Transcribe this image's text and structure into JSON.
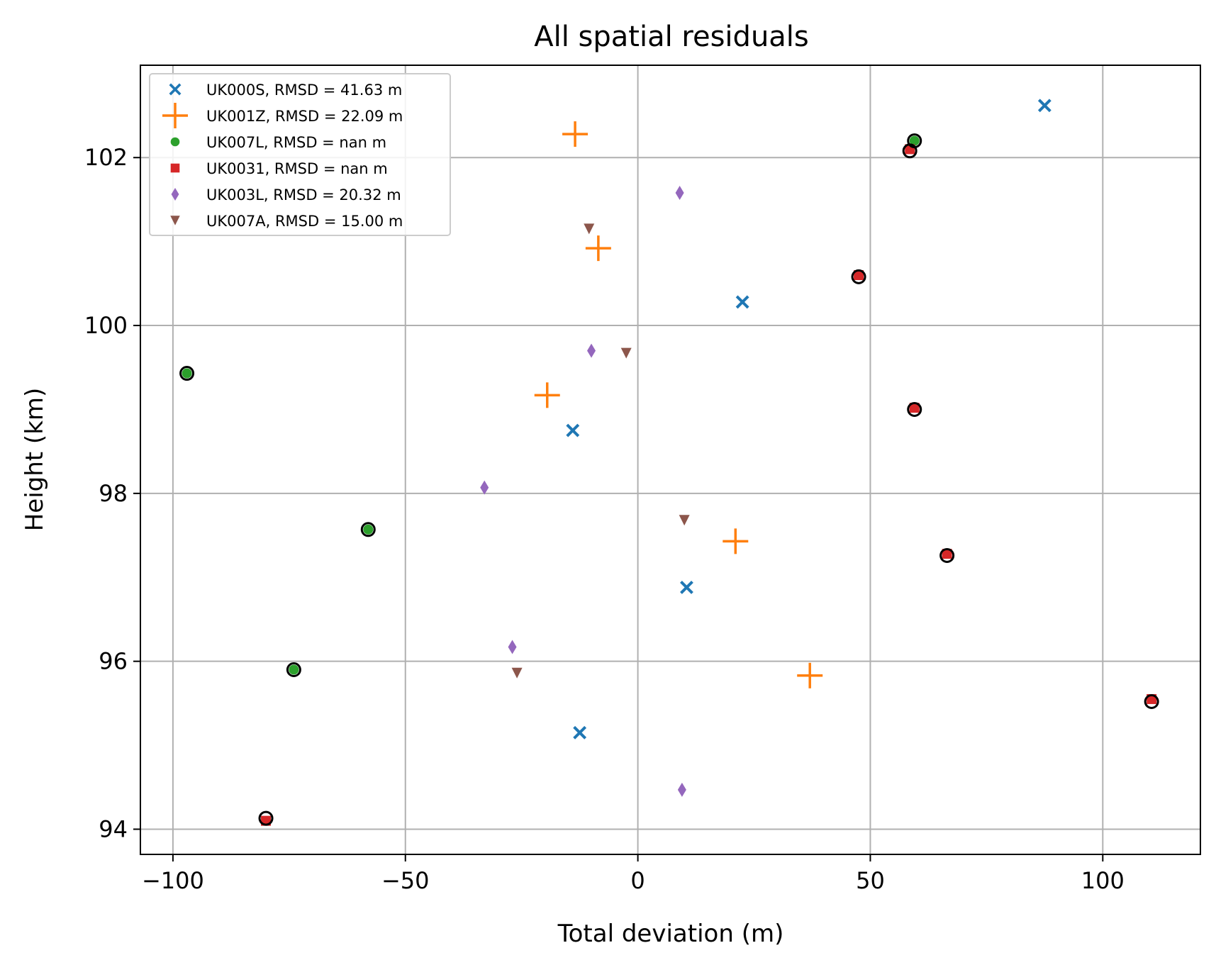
{
  "chart_data": {
    "type": "scatter",
    "title": "All spatial residuals",
    "xlabel": "Total deviation (m)",
    "ylabel": "Height (km)",
    "xlim": [
      -107,
      121
    ],
    "ylim": [
      93.7,
      103.1
    ],
    "xticks": [
      -100,
      -50,
      0,
      50,
      100
    ],
    "xtick_labels": [
      "−100",
      "−50",
      "0",
      "50",
      "100"
    ],
    "yticks": [
      94,
      96,
      98,
      100,
      102
    ],
    "ytick_labels": [
      "94",
      "96",
      "98",
      "100",
      "102"
    ],
    "grid": true,
    "legend_position": "top-left",
    "series": [
      {
        "name": "UK000S, RMSD = 41.63 m",
        "marker": "x",
        "color": "#1f77b4",
        "points": [
          [
            87.5,
            102.62
          ],
          [
            22.5,
            100.28
          ],
          [
            -14,
            98.75
          ],
          [
            10.5,
            96.88
          ],
          [
            -12.5,
            95.15
          ]
        ]
      },
      {
        "name": "UK001Z, RMSD = 22.09 m",
        "marker": "plus",
        "color": "#ff7f0e",
        "points": [
          [
            -13.5,
            102.28
          ],
          [
            -8.5,
            100.92
          ],
          [
            -19.5,
            99.17
          ],
          [
            21,
            97.43
          ],
          [
            37,
            95.83
          ]
        ]
      },
      {
        "name": "UK007L, RMSD = nan m",
        "marker": "circle",
        "color": "#2ca02c",
        "outlined": true,
        "points": [
          [
            59.5,
            102.2
          ],
          [
            -97,
            99.43
          ],
          [
            -58,
            97.57
          ],
          [
            -74,
            95.9
          ]
        ]
      },
      {
        "name": "UK0031, RMSD = nan m",
        "marker": "square",
        "color": "#d62728",
        "points": [
          [
            58.5,
            102.1
          ],
          [
            47.5,
            100.6
          ],
          [
            59.5,
            99.02
          ],
          [
            66.5,
            97.28
          ],
          [
            110.5,
            95.55
          ],
          [
            -80,
            94.1
          ]
        ]
      },
      {
        "name": "UK003L, RMSD = 20.32 m",
        "marker": "diamond",
        "color": "#9467bd",
        "points": [
          [
            9,
            101.58
          ],
          [
            -10,
            99.7
          ],
          [
            -33,
            98.07
          ],
          [
            -27,
            96.17
          ],
          [
            9.5,
            94.47
          ]
        ]
      },
      {
        "name": "UK007A, RMSD = 15.00 m",
        "marker": "triangle-down",
        "color": "#8c564b",
        "points": [
          [
            -10.5,
            101.15
          ],
          [
            -2.5,
            99.67
          ],
          [
            10,
            97.68
          ],
          [
            -26,
            95.86
          ]
        ]
      }
    ],
    "outlined_points": [
      [
        59.5,
        102.2
      ],
      [
        58.5,
        102.08
      ],
      [
        47.5,
        100.58
      ],
      [
        59.5,
        99.0
      ],
      [
        66.5,
        97.26
      ],
      [
        110.5,
        95.52
      ],
      [
        -80,
        94.13
      ],
      [
        -97,
        99.43
      ],
      [
        -58,
        97.57
      ],
      [
        -74,
        95.9
      ]
    ]
  }
}
